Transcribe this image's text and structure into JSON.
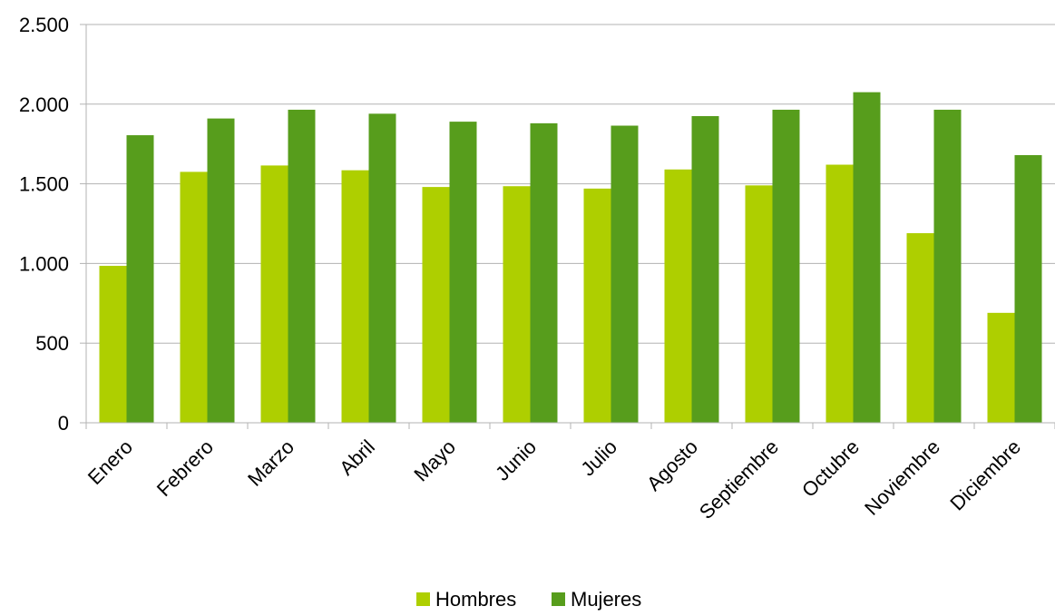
{
  "chart_data": {
    "type": "bar",
    "categories": [
      "Enero",
      "Febrero",
      "Marzo",
      "Abril",
      "Mayo",
      "Junio",
      "Julio",
      "Agosto",
      "Septiembre",
      "Octubre",
      "Noviembre",
      "Diciembre"
    ],
    "series": [
      {
        "name": "Hombres",
        "color": "#aecf00",
        "values": [
          985,
          1575,
          1615,
          1585,
          1480,
          1485,
          1470,
          1590,
          1490,
          1620,
          1190,
          690
        ]
      },
      {
        "name": "Mujeres",
        "color": "#579d1c",
        "values": [
          1805,
          1910,
          1965,
          1940,
          1890,
          1880,
          1865,
          1925,
          1965,
          2075,
          1965,
          1680
        ]
      }
    ],
    "y_ticks": [
      0,
      500,
      1000,
      1500,
      2000,
      2500
    ],
    "y_tick_labels": [
      "0",
      "500",
      "1.000",
      "1.500",
      "2.000",
      "2.500"
    ],
    "ylim": [
      0,
      2500
    ],
    "title": "",
    "xlabel": "",
    "ylabel": "",
    "grid": true,
    "legend_position": "bottom"
  }
}
